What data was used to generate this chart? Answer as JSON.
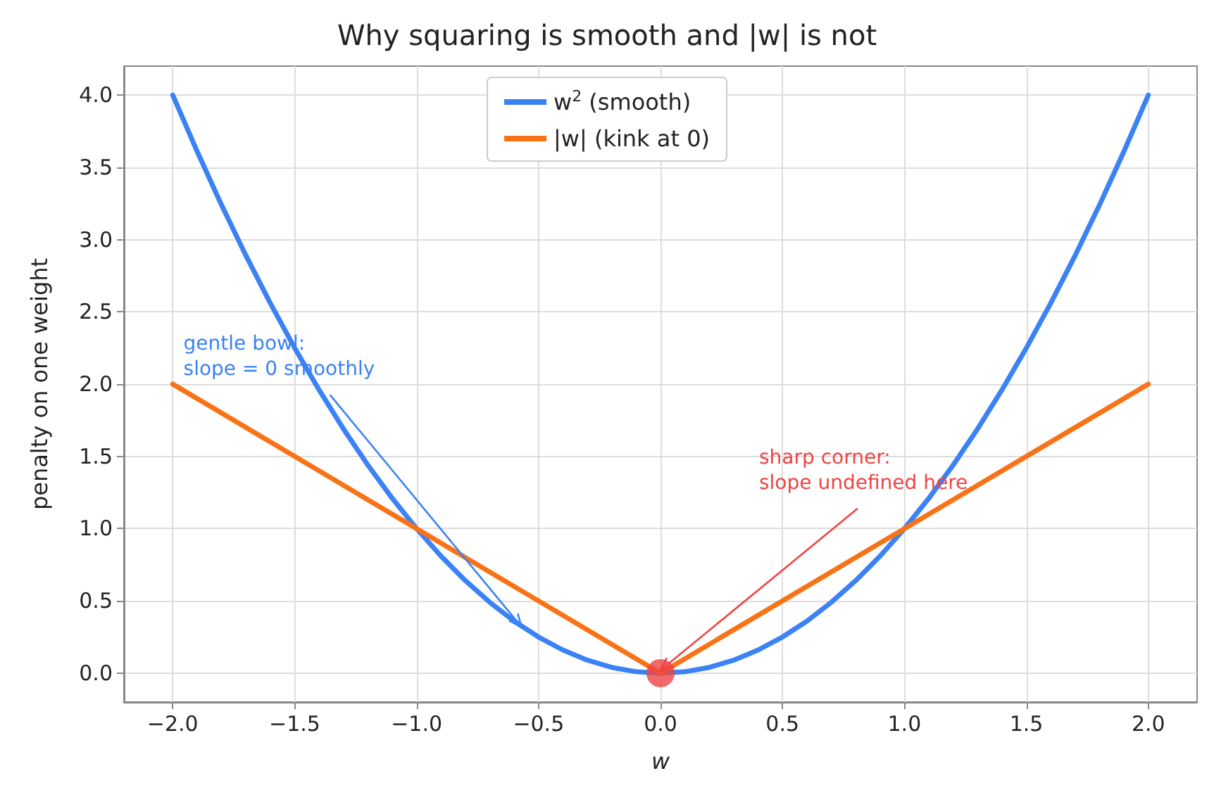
{
  "chart_data": {
    "type": "line",
    "title": "Why squaring is smooth and |w| is not",
    "xlabel": "w",
    "ylabel": "penalty on one weight",
    "xlim": [
      -2.2,
      2.2
    ],
    "xticks": [
      {
        "value": -2,
        "label": "−2.0"
      },
      {
        "value": -1.5,
        "label": "−1.5"
      },
      {
        "value": -1,
        "label": "−1.0"
      },
      {
        "value": -0.5,
        "label": "−0.5"
      },
      {
        "value": 0,
        "label": "0.0"
      },
      {
        "value": 0.5,
        "label": "0.5"
      },
      {
        "value": 1,
        "label": "1.0"
      },
      {
        "value": 1.5,
        "label": "1.5"
      },
      {
        "value": 2,
        "label": "2.0"
      }
    ],
    "ylim": [
      -0.2,
      4.2
    ],
    "yticks": [
      {
        "value": 0,
        "label": "0.0"
      },
      {
        "value": 0.5,
        "label": "0.5"
      },
      {
        "value": 1,
        "label": "1.0"
      },
      {
        "value": 1.5,
        "label": "1.5"
      },
      {
        "value": 2,
        "label": "2.0"
      },
      {
        "value": 2.5,
        "label": "2.5"
      },
      {
        "value": 3,
        "label": "3.0"
      },
      {
        "value": 3.5,
        "label": "3.5"
      },
      {
        "value": 4,
        "label": "4.0"
      }
    ],
    "grid": true,
    "legend": "top",
    "marker": "none",
    "line_style": "solid",
    "series": [
      {
        "name": "w$^{2}$ (smooth)",
        "color": "#3b82f6",
        "x": [
          -2,
          -1.9,
          -1.8,
          -1.7,
          -1.6,
          -1.5,
          -1.4,
          -1.3,
          -1.2,
          -1.1,
          -1,
          -0.9,
          -0.8,
          -0.7,
          -0.6,
          -0.5,
          -0.4,
          -0.3,
          -0.2,
          -0.1,
          0,
          0.1,
          0.2,
          0.3,
          0.4,
          0.5,
          0.6,
          0.7,
          0.8,
          0.9,
          1,
          1.1,
          1.2,
          1.3,
          1.4,
          1.5,
          1.6,
          1.7,
          1.8,
          1.9,
          2
        ],
        "values": [
          4,
          3.61,
          3.24,
          2.89,
          2.56,
          2.25,
          1.96,
          1.69,
          1.44,
          1.21,
          1,
          0.81,
          0.64,
          0.49,
          0.36,
          0.25,
          0.16,
          0.09,
          0.04,
          0.01,
          0,
          0.01,
          0.04,
          0.09,
          0.16,
          0.25,
          0.36,
          0.49,
          0.64,
          0.81,
          1,
          1.21,
          1.44,
          1.69,
          1.96,
          2.25,
          2.56,
          2.89,
          3.24,
          3.61,
          4
        ]
      },
      {
        "name": "|w| (kink at 0)",
        "color": "#f97316",
        "x": [
          -2,
          0,
          2
        ],
        "values": [
          2,
          0,
          2
        ]
      },
      {
        "type": "scatter",
        "color": "#ef4444",
        "marker": "circle",
        "x": [
          0
        ],
        "values": [
          0
        ]
      }
    ],
    "annotations": [
      {
        "text": "gentle bowl:\nslope = 0 smoothly",
        "x": -0.57,
        "y": 0.32
      },
      {
        "text": "sharp corner:\nslope undefined here",
        "x": 0,
        "y": 0.02
      }
    ]
  }
}
